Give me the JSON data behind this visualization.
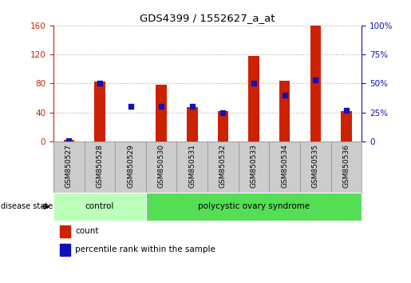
{
  "title": "GDS4399 / 1552627_a_at",
  "samples": [
    "GSM850527",
    "GSM850528",
    "GSM850529",
    "GSM850530",
    "GSM850531",
    "GSM850532",
    "GSM850533",
    "GSM850534",
    "GSM850535",
    "GSM850536"
  ],
  "counts": [
    2,
    83,
    0,
    78,
    47,
    42,
    118,
    84,
    160,
    42
  ],
  "percentile_ranks": [
    1,
    50,
    30,
    30,
    30,
    25,
    50,
    40,
    53,
    27
  ],
  "ylim_left": [
    0,
    160
  ],
  "ylim_right": [
    0,
    100
  ],
  "yticks_left": [
    0,
    40,
    80,
    120,
    160
  ],
  "yticks_right": [
    0,
    25,
    50,
    75,
    100
  ],
  "bar_color": "#cc2200",
  "dot_color": "#1111bb",
  "grid_color": "#aaaaaa",
  "control_count": 3,
  "pcos_count": 7,
  "control_label": "control",
  "pcos_label": "polycystic ovary syndrome",
  "disease_state_label": "disease state",
  "control_bg": "#bbffbb",
  "pcos_bg": "#55dd55",
  "legend_count": "count",
  "legend_pct": "percentile rank within the sample",
  "left_color": "#cc2200",
  "right_color": "#1111bb",
  "bar_width": 0.35,
  "tick_label_bg": "#cccccc",
  "tick_label_border": "#888888"
}
